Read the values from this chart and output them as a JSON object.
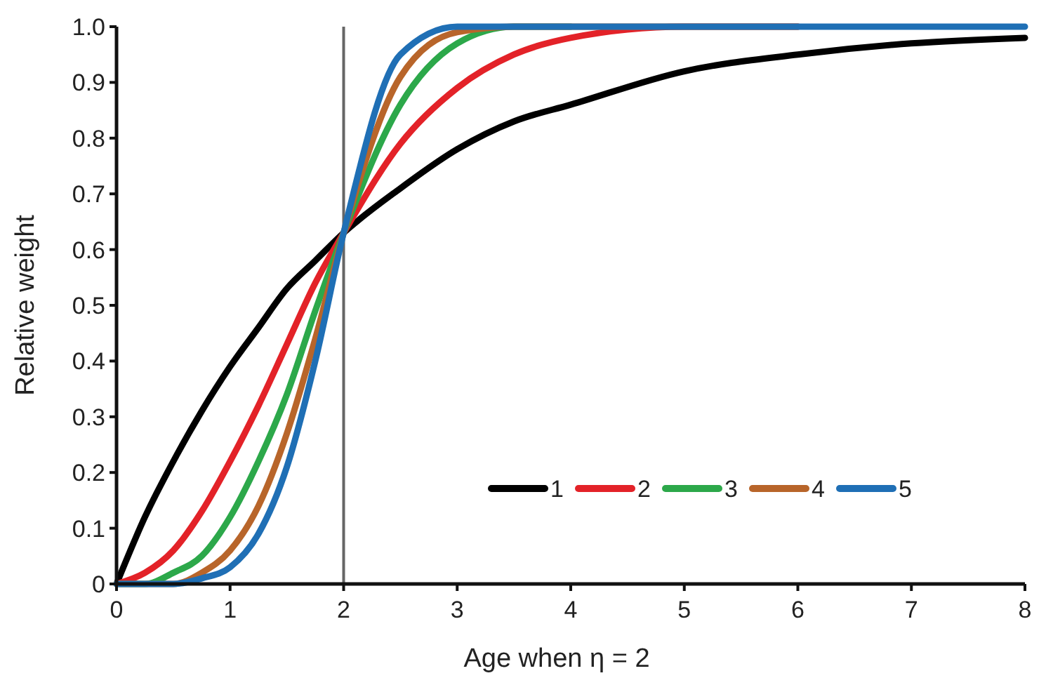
{
  "chart_data": {
    "type": "line",
    "xlabel": "Age when η = 2",
    "ylabel": "Relative weight",
    "xlim": [
      0,
      8
    ],
    "ylim": [
      0,
      1.0
    ],
    "xticks": [
      0,
      1,
      2,
      3,
      4,
      5,
      6,
      7,
      8
    ],
    "yticks": [
      0,
      {
        "value": 0.1,
        "label": "0.1"
      },
      {
        "value": 0.2,
        "label": "0.2"
      },
      {
        "value": 0.3,
        "label": "0.3"
      },
      {
        "value": 0.4,
        "label": "0.4"
      },
      {
        "value": 0.5,
        "label": "0.5"
      },
      {
        "value": 0.6,
        "label": "0.6"
      },
      {
        "value": 0.7,
        "label": "0.7"
      },
      {
        "value": 0.8,
        "label": "0.8"
      },
      {
        "value": 0.9,
        "label": "0.9"
      },
      {
        "value": 1.0,
        "label": "1.0"
      }
    ],
    "x": [
      0,
      0.25,
      0.5,
      0.75,
      1,
      1.25,
      1.5,
      1.75,
      2,
      2.5,
      3,
      3.5,
      4,
      5,
      6,
      7,
      8
    ],
    "series": [
      {
        "name": "1",
        "color": "#000000",
        "values": [
          0,
          0.12,
          0.22,
          0.31,
          0.39,
          0.46,
          0.53,
          0.58,
          0.63,
          0.71,
          0.78,
          0.83,
          0.86,
          0.92,
          0.95,
          0.97,
          0.98
        ]
      },
      {
        "name": "2",
        "color": "#e32228",
        "values": [
          0,
          0.02,
          0.06,
          0.13,
          0.22,
          0.32,
          0.43,
          0.54,
          0.63,
          0.79,
          0.89,
          0.95,
          0.98,
          1.0,
          1.0,
          null,
          null
        ]
      },
      {
        "name": "3",
        "color": "#2ca84a",
        "values": [
          0,
          0,
          0.02,
          0.05,
          0.12,
          0.22,
          0.34,
          0.49,
          0.63,
          0.86,
          0.97,
          1.0,
          1.0,
          null,
          null,
          null,
          null
        ]
      },
      {
        "name": "4",
        "color": "#b8652a",
        "values": [
          0,
          0,
          0,
          0.02,
          0.06,
          0.14,
          0.27,
          0.44,
          0.63,
          0.91,
          0.99,
          1.0,
          1.0,
          1.0,
          1.0,
          null,
          null
        ]
      },
      {
        "name": "5",
        "color": "#1f6fb5",
        "values": [
          0,
          0,
          0,
          0.01,
          0.03,
          0.09,
          0.21,
          0.4,
          0.63,
          0.95,
          1.0,
          1.0,
          1.0,
          1.0,
          1.0,
          1.0,
          1.0
        ]
      }
    ],
    "ref_lines": [
      {
        "axis": "x",
        "value": 2,
        "color": "#666666"
      }
    ],
    "legend": "bottom right",
    "grid": false,
    "marker": "none",
    "line_style": "solid"
  }
}
